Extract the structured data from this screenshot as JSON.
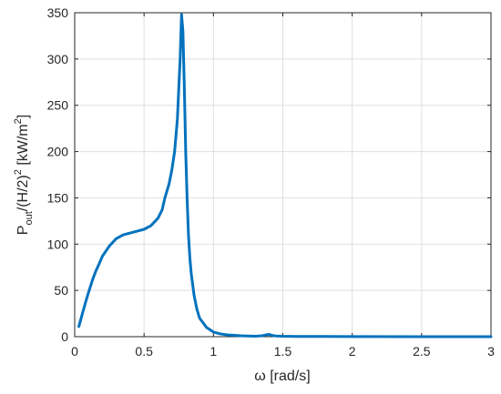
{
  "chart_data": {
    "type": "line",
    "title": "",
    "xlabel": "ω  [rad/s]",
    "ylabel": {
      "p1": "P",
      "sub": "out",
      "p2": "/(H/2)",
      "sup1": "2",
      "p3": "  [kW/m",
      "sup2": "2",
      "p4": "]"
    },
    "xlim": [
      0,
      3
    ],
    "ylim": [
      0,
      350
    ],
    "xticks": [
      0,
      0.5,
      1,
      1.5,
      2,
      2.5,
      3
    ],
    "xtick_labels": [
      "0",
      "0.5",
      "1",
      "1.5",
      "2",
      "2.5",
      "3"
    ],
    "yticks": [
      0,
      50,
      100,
      150,
      200,
      250,
      300,
      350
    ],
    "ytick_labels": [
      "0",
      "50",
      "100",
      "150",
      "200",
      "250",
      "300",
      "350"
    ],
    "grid": true,
    "series": [
      {
        "color": "#0072bd",
        "x": [
          0.03,
          0.05,
          0.08,
          0.1,
          0.13,
          0.15,
          0.18,
          0.2,
          0.25,
          0.3,
          0.35,
          0.4,
          0.45,
          0.5,
          0.55,
          0.6,
          0.63,
          0.65,
          0.68,
          0.7,
          0.72,
          0.74,
          0.75,
          0.76,
          0.77,
          0.78,
          0.79,
          0.8,
          0.81,
          0.82,
          0.83,
          0.84,
          0.86,
          0.88,
          0.9,
          0.95,
          1.0,
          1.05,
          1.1,
          1.2,
          1.3,
          1.35,
          1.38,
          1.4,
          1.42,
          1.45,
          1.5,
          1.6,
          1.8,
          2.0,
          2.5,
          3.0
        ],
        "y": [
          11,
          22,
          38,
          48,
          62,
          70,
          80,
          87,
          98,
          106,
          110,
          112,
          114,
          116,
          120,
          128,
          137,
          150,
          165,
          180,
          200,
          235,
          268,
          300,
          348,
          330,
          270,
          200,
          150,
          110,
          85,
          68,
          45,
          30,
          20,
          10,
          5,
          3,
          2,
          1,
          0.5,
          1,
          2,
          2.5,
          1.5,
          0.8,
          0.5,
          0.3,
          0.2,
          0.1,
          0.05,
          0.02
        ]
      }
    ]
  }
}
